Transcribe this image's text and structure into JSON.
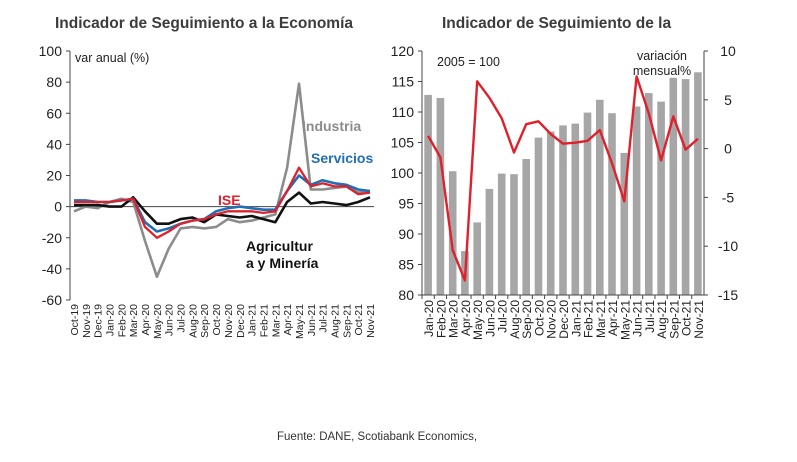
{
  "source_note": "Fuente:  DANE, Scotiabank Economics,",
  "chart_data": [
    {
      "type": "line",
      "title": "Indicador de Seguimiento a la Economía",
      "ylabel": "var anual (%)",
      "ylim": [
        -60,
        100
      ],
      "yticks": [
        -60,
        -40,
        -20,
        0,
        20,
        40,
        60,
        80,
        100
      ],
      "x": [
        "Oct-19",
        "Nov-19",
        "Dec-19",
        "Jan-20",
        "Feb-20",
        "Mar-20",
        "Apr-20",
        "May-20",
        "Jun-20",
        "Jul-20",
        "Aug-20",
        "Sep-20",
        "Oct-20",
        "Nov-20",
        "Dec-20",
        "Jan-21",
        "Feb-21",
        "Mar-21",
        "Apr-21",
        "May-21",
        "Jun-21",
        "Jul-21",
        "Aug-21",
        "Sep-21",
        "Oct-21",
        "Nov-21"
      ],
      "xtick_labels": [
        "Oct-19",
        "Nov-19",
        "Dec-19",
        "Jan-20",
        "Feb-20",
        "Mar-20",
        "Apr-20",
        "May-20",
        "Jun-20",
        "Jul-20",
        "Aug-20",
        "Sep-20",
        "Oct-20",
        "Nov-20",
        "Dec-20",
        "Jan-21",
        "Feb-21",
        "Mar-21",
        "Apr-21",
        "May-21",
        "Jun-21",
        "Jul-21",
        "Aug-21",
        "Sep-21",
        "Oct-21",
        "Nov-21"
      ],
      "series": [
        {
          "name": "Industria",
          "color": "#8c8c8c",
          "values": [
            -3,
            0,
            -1,
            3,
            5,
            3,
            -22,
            -45,
            -27,
            -14,
            -13,
            -14,
            -13,
            -8,
            -10,
            -9,
            -7,
            -5,
            25,
            79,
            11,
            11,
            12,
            13,
            9,
            10
          ]
        },
        {
          "name": "Agricultur a y Minería",
          "color": "#111111",
          "values": [
            1,
            1,
            1,
            0,
            0,
            6,
            -3,
            -11,
            -11,
            -8,
            -7,
            -10,
            -5,
            -6,
            -7,
            -6,
            -8,
            -10,
            3,
            9,
            2,
            3,
            2,
            1,
            3,
            6
          ]
        },
        {
          "name": "Servicios",
          "color": "#1f6fb5",
          "values": [
            4,
            4,
            3,
            3,
            4,
            5,
            -10,
            -16,
            -14,
            -11,
            -9,
            -8,
            -3,
            -1,
            0,
            -1,
            -2,
            -2,
            10,
            20,
            14,
            17,
            15,
            14,
            11,
            10
          ]
        },
        {
          "name": "ISE",
          "color": "#e0202b",
          "values": [
            3,
            3,
            3,
            3,
            4,
            5,
            -13,
            -20,
            -16,
            -11,
            -9,
            -8,
            -5,
            -3,
            -3,
            -3,
            -4,
            -3,
            10,
            25,
            13,
            15,
            13,
            13,
            8,
            9
          ]
        }
      ],
      "labels": {
        "industria": "Industria",
        "servicios": "Servicios",
        "ise": "ISE",
        "agri_line1": "Agricultur",
        "agri_line2": "a y Minería"
      }
    },
    {
      "type": "bar+line",
      "title": "Indicador de Seguimiento de la",
      "annotation": "2005 = 100",
      "y2label_line1": "variación",
      "y2label_line2": "mensual%",
      "ylim": [
        80,
        120
      ],
      "yticks": [
        80,
        85,
        90,
        95,
        100,
        105,
        110,
        115,
        120
      ],
      "y2lim": [
        -15,
        10
      ],
      "y2ticks": [
        -15,
        -10,
        -5,
        0,
        5,
        10
      ],
      "x": [
        "Jan-20",
        "Feb-20",
        "Mar-20",
        "Apr-20",
        "May-20",
        "Jun-20",
        "Jul-20",
        "Aug-20",
        "Sep-20",
        "Oct-20",
        "Nov-20",
        "Dec-20",
        "Jan-21",
        "Feb-21",
        "Mar-21",
        "Apr-21",
        "May-21",
        "Jun-21",
        "Jul-21",
        "Aug-21",
        "Sep-21",
        "Oct-21",
        "Nov-21"
      ],
      "xtick_labels": [
        "Jan-20",
        "Feb-20",
        "Mar-20",
        "Apr-20",
        "May-20",
        "Jun-20",
        "Jul-20",
        "Aug-20",
        "Sep-20",
        "Oct-20",
        "Nov-20",
        "Dec-20",
        "Jan-21",
        "Feb-21",
        "Mar-21",
        "Apr-21",
        "May-21",
        "Jun-21",
        "Jul-21",
        "Aug-21",
        "Sep-21",
        "Oct-21",
        "Nov-21"
      ],
      "bars": {
        "color": "#a6a6a6",
        "values": [
          112.8,
          112.3,
          100.3,
          87.2,
          91.9,
          97.4,
          99.9,
          99.8,
          102.3,
          105.8,
          106.8,
          107.8,
          108.1,
          109.9,
          112.0,
          109.8,
          103.3,
          110.9,
          113.1,
          111.7,
          115.6,
          115.4,
          116.5
        ]
      },
      "line": {
        "color": "#e0202b",
        "axis": "right",
        "values": [
          1.3,
          -0.9,
          -10.4,
          -13.5,
          6.9,
          5.2,
          3.1,
          -0.4,
          2.5,
          2.8,
          1.5,
          0.5,
          0.6,
          0.8,
          1.9,
          -1.5,
          -5.4,
          7.4,
          3.6,
          -1.2,
          3.3,
          -0.1,
          1.0
        ]
      }
    }
  ]
}
